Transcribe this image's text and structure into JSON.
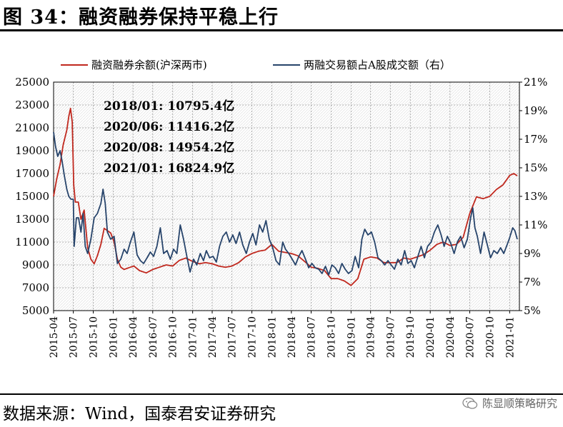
{
  "title": "图 34：融资融券保持平稳上行",
  "source": "数据来源：Wind，国泰君安证券研究",
  "watermark": "陈显顺策略研究",
  "chart_data": {
    "type": "line",
    "grid": true,
    "legend_position": "top",
    "series": [
      {
        "name": "融资融券余额(沪深两市)",
        "axis": "left",
        "color": "#c0281e",
        "points": [
          [
            "2015-04-01",
            15000
          ],
          [
            "2015-04-15",
            16500
          ],
          [
            "2015-05-01",
            17800
          ],
          [
            "2015-05-15",
            19500
          ],
          [
            "2015-06-01",
            20800
          ],
          [
            "2015-06-10",
            22000
          ],
          [
            "2015-06-18",
            22700
          ],
          [
            "2015-06-26",
            21500
          ],
          [
            "2015-07-03",
            16000
          ],
          [
            "2015-07-10",
            14500
          ],
          [
            "2015-07-24",
            14500
          ],
          [
            "2015-08-05",
            13000
          ],
          [
            "2015-08-20",
            13800
          ],
          [
            "2015-09-05",
            10500
          ],
          [
            "2015-09-20",
            9500
          ],
          [
            "2015-10-05",
            9100
          ],
          [
            "2015-10-20",
            9800
          ],
          [
            "2015-11-05",
            10800
          ],
          [
            "2015-11-20",
            12200
          ],
          [
            "2015-12-05",
            12000
          ],
          [
            "2015-12-20",
            11800
          ],
          [
            "2016-01-05",
            11000
          ],
          [
            "2016-01-20",
            9500
          ],
          [
            "2016-02-05",
            8800
          ],
          [
            "2016-02-20",
            8600
          ],
          [
            "2016-03-05",
            8700
          ],
          [
            "2016-03-20",
            8800
          ],
          [
            "2016-04-05",
            8900
          ],
          [
            "2016-05-01",
            8500
          ],
          [
            "2016-06-01",
            8300
          ],
          [
            "2016-07-01",
            8600
          ],
          [
            "2016-08-01",
            8800
          ],
          [
            "2016-09-01",
            9000
          ],
          [
            "2016-10-01",
            8900
          ],
          [
            "2016-11-01",
            9400
          ],
          [
            "2016-12-01",
            9600
          ],
          [
            "2017-01-01",
            9300
          ],
          [
            "2017-02-01",
            9100
          ],
          [
            "2017-03-01",
            9200
          ],
          [
            "2017-04-01",
            9100
          ],
          [
            "2017-05-01",
            8900
          ],
          [
            "2017-06-01",
            8800
          ],
          [
            "2017-07-01",
            8900
          ],
          [
            "2017-08-01",
            9200
          ],
          [
            "2017-09-01",
            9700
          ],
          [
            "2017-10-01",
            10000
          ],
          [
            "2017-11-01",
            10200
          ],
          [
            "2017-12-01",
            10300
          ],
          [
            "2018-01-01",
            10795.4
          ],
          [
            "2018-02-01",
            10200
          ],
          [
            "2018-03-01",
            10100
          ],
          [
            "2018-04-01",
            10000
          ],
          [
            "2018-05-01",
            9800
          ],
          [
            "2018-06-01",
            9300
          ],
          [
            "2018-07-01",
            8800
          ],
          [
            "2018-08-01",
            8700
          ],
          [
            "2018-09-01",
            8500
          ],
          [
            "2018-10-01",
            7800
          ],
          [
            "2018-11-01",
            7800
          ],
          [
            "2018-12-01",
            7600
          ],
          [
            "2019-01-01",
            7200
          ],
          [
            "2019-02-01",
            7800
          ],
          [
            "2019-03-01",
            9500
          ],
          [
            "2019-04-01",
            9700
          ],
          [
            "2019-05-01",
            9600
          ],
          [
            "2019-06-01",
            9200
          ],
          [
            "2019-07-01",
            9200
          ],
          [
            "2019-08-01",
            9200
          ],
          [
            "2019-09-01",
            9600
          ],
          [
            "2019-10-01",
            9500
          ],
          [
            "2019-11-01",
            9700
          ],
          [
            "2019-12-01",
            9900
          ],
          [
            "2020-01-01",
            10300
          ],
          [
            "2020-02-01",
            10800
          ],
          [
            "2020-03-01",
            11000
          ],
          [
            "2020-04-01",
            10700
          ],
          [
            "2020-05-01",
            10800
          ],
          [
            "2020-06-01",
            11416.2
          ],
          [
            "2020-07-01",
            13500
          ],
          [
            "2020-08-01",
            14954.2
          ],
          [
            "2020-09-01",
            14800
          ],
          [
            "2020-10-01",
            15000
          ],
          [
            "2020-11-01",
            15600
          ],
          [
            "2020-12-01",
            16000
          ],
          [
            "2021-01-01",
            16824.9
          ],
          [
            "2021-01-20",
            17000
          ],
          [
            "2021-02-05",
            16800
          ]
        ]
      },
      {
        "name": "两融交易额占A股成交额（右）",
        "axis": "right",
        "color": "#27446b",
        "points": [
          [
            "2015-04-01",
            17.5
          ],
          [
            "2015-04-10",
            16.5
          ],
          [
            "2015-04-20",
            15.8
          ],
          [
            "2015-05-01",
            16.2
          ],
          [
            "2015-05-10",
            15.5
          ],
          [
            "2015-05-20",
            14.5
          ],
          [
            "2015-06-01",
            13.5
          ],
          [
            "2015-06-10",
            13.0
          ],
          [
            "2015-06-20",
            12.8
          ],
          [
            "2015-07-01",
            12.8
          ],
          [
            "2015-07-05",
            9.5
          ],
          [
            "2015-07-15",
            11.5
          ],
          [
            "2015-07-25",
            11.5
          ],
          [
            "2015-08-05",
            10.5
          ],
          [
            "2015-08-15",
            11.8
          ],
          [
            "2015-08-25",
            9.5
          ],
          [
            "2015-09-05",
            9.0
          ],
          [
            "2015-09-20",
            10.0
          ],
          [
            "2015-10-05",
            11.5
          ],
          [
            "2015-10-20",
            11.8
          ],
          [
            "2015-11-05",
            12.5
          ],
          [
            "2015-11-15",
            13.5
          ],
          [
            "2015-11-25",
            12.5
          ],
          [
            "2015-12-05",
            10.5
          ],
          [
            "2015-12-20",
            10.0
          ],
          [
            "2016-01-05",
            10.2
          ],
          [
            "2016-01-20",
            8.3
          ],
          [
            "2016-02-05",
            8.6
          ],
          [
            "2016-02-20",
            9.3
          ],
          [
            "2016-03-05",
            9.0
          ],
          [
            "2016-03-20",
            9.8
          ],
          [
            "2016-04-05",
            10.5
          ],
          [
            "2016-04-20",
            8.9
          ],
          [
            "2016-05-05",
            8.5
          ],
          [
            "2016-05-20",
            8.3
          ],
          [
            "2016-06-05",
            8.7
          ],
          [
            "2016-06-20",
            9.1
          ],
          [
            "2016-07-05",
            8.8
          ],
          [
            "2016-07-20",
            9.5
          ],
          [
            "2016-08-05",
            10.8
          ],
          [
            "2016-08-20",
            9.0
          ],
          [
            "2016-09-05",
            9.2
          ],
          [
            "2016-09-20",
            8.6
          ],
          [
            "2016-10-05",
            9.3
          ],
          [
            "2016-10-20",
            9.0
          ],
          [
            "2016-11-05",
            11.0
          ],
          [
            "2016-11-20",
            10.0
          ],
          [
            "2016-12-05",
            8.8
          ],
          [
            "2016-12-20",
            7.7
          ],
          [
            "2017-01-05",
            8.6
          ],
          [
            "2017-01-20",
            8.2
          ],
          [
            "2017-02-05",
            9.0
          ],
          [
            "2017-02-20",
            8.5
          ],
          [
            "2017-03-05",
            9.2
          ],
          [
            "2017-03-20",
            8.7
          ],
          [
            "2017-04-05",
            8.8
          ],
          [
            "2017-04-20",
            8.4
          ],
          [
            "2017-05-05",
            9.5
          ],
          [
            "2017-05-20",
            10.2
          ],
          [
            "2017-06-05",
            10.5
          ],
          [
            "2017-06-20",
            9.8
          ],
          [
            "2017-07-05",
            10.3
          ],
          [
            "2017-07-20",
            9.7
          ],
          [
            "2017-08-05",
            10.5
          ],
          [
            "2017-08-20",
            9.6
          ],
          [
            "2017-09-05",
            9.0
          ],
          [
            "2017-09-20",
            9.8
          ],
          [
            "2017-10-05",
            10.4
          ],
          [
            "2017-10-20",
            9.6
          ],
          [
            "2017-11-05",
            11.0
          ],
          [
            "2017-11-20",
            10.5
          ],
          [
            "2017-12-05",
            11.3
          ],
          [
            "2017-12-20",
            10.0
          ],
          [
            "2018-01-05",
            9.4
          ],
          [
            "2018-01-20",
            8.5
          ],
          [
            "2018-02-05",
            8.2
          ],
          [
            "2018-02-20",
            9.8
          ],
          [
            "2018-03-05",
            9.3
          ],
          [
            "2018-03-20",
            9.0
          ],
          [
            "2018-04-05",
            8.6
          ],
          [
            "2018-04-20",
            8.2
          ],
          [
            "2018-05-05",
            8.8
          ],
          [
            "2018-05-20",
            9.2
          ],
          [
            "2018-06-05",
            8.6
          ],
          [
            "2018-06-20",
            8.0
          ],
          [
            "2018-07-05",
            8.3
          ],
          [
            "2018-07-20",
            8.0
          ],
          [
            "2018-08-05",
            7.9
          ],
          [
            "2018-08-20",
            7.6
          ],
          [
            "2018-09-05",
            8.1
          ],
          [
            "2018-09-20",
            7.5
          ],
          [
            "2018-10-05",
            8.2
          ],
          [
            "2018-10-20",
            8.0
          ],
          [
            "2018-11-05",
            7.6
          ],
          [
            "2018-11-20",
            8.3
          ],
          [
            "2018-12-05",
            7.9
          ],
          [
            "2018-12-20",
            7.6
          ],
          [
            "2019-01-05",
            7.8
          ],
          [
            "2019-01-20",
            8.8
          ],
          [
            "2019-02-05",
            8.0
          ],
          [
            "2019-02-20",
            10.0
          ],
          [
            "2019-03-05",
            10.7
          ],
          [
            "2019-03-20",
            10.3
          ],
          [
            "2019-04-05",
            10.5
          ],
          [
            "2019-04-20",
            9.8
          ],
          [
            "2019-05-05",
            8.7
          ],
          [
            "2019-05-20",
            8.5
          ],
          [
            "2019-06-05",
            8.2
          ],
          [
            "2019-06-20",
            8.5
          ],
          [
            "2019-07-05",
            8.2
          ],
          [
            "2019-07-20",
            7.9
          ],
          [
            "2019-08-05",
            8.6
          ],
          [
            "2019-08-20",
            8.2
          ],
          [
            "2019-09-05",
            9.2
          ],
          [
            "2019-09-20",
            8.3
          ],
          [
            "2019-10-05",
            8.5
          ],
          [
            "2019-10-20",
            8.0
          ],
          [
            "2019-11-05",
            8.8
          ],
          [
            "2019-11-20",
            9.5
          ],
          [
            "2019-12-05",
            8.7
          ],
          [
            "2019-12-20",
            9.5
          ],
          [
            "2020-01-05",
            9.8
          ],
          [
            "2020-01-20",
            10.5
          ],
          [
            "2020-02-05",
            11.0
          ],
          [
            "2020-02-20",
            10.3
          ],
          [
            "2020-03-05",
            9.5
          ],
          [
            "2020-03-20",
            10.2
          ],
          [
            "2020-04-05",
            9.7
          ],
          [
            "2020-04-20",
            9.0
          ],
          [
            "2020-05-05",
            9.8
          ],
          [
            "2020-05-20",
            10.2
          ],
          [
            "2020-06-05",
            9.4
          ],
          [
            "2020-06-20",
            10.0
          ],
          [
            "2020-07-05",
            11.5
          ],
          [
            "2020-07-15",
            12.2
          ],
          [
            "2020-07-25",
            10.8
          ],
          [
            "2020-08-05",
            10.2
          ],
          [
            "2020-08-20",
            9.0
          ],
          [
            "2020-09-05",
            10.5
          ],
          [
            "2020-09-20",
            9.6
          ],
          [
            "2020-10-05",
            8.7
          ],
          [
            "2020-10-20",
            9.2
          ],
          [
            "2020-11-05",
            9.0
          ],
          [
            "2020-11-20",
            9.4
          ],
          [
            "2020-12-05",
            9.0
          ],
          [
            "2020-12-20",
            9.6
          ],
          [
            "2021-01-01",
            10.1
          ],
          [
            "2021-01-15",
            10.8
          ],
          [
            "2021-01-25",
            10.6
          ],
          [
            "2021-02-05",
            10.0
          ]
        ]
      }
    ],
    "left_axis": {
      "min": 5000,
      "max": 25000,
      "ticks": [
        "25000",
        "23000",
        "21000",
        "19000",
        "17000",
        "15000",
        "13000",
        "11000",
        "9000",
        "7000",
        "5000"
      ]
    },
    "right_axis": {
      "min": 5,
      "max": 21,
      "ticks": [
        "21%",
        "19%",
        "17%",
        "15%",
        "13%",
        "11%",
        "9%",
        "7%",
        "5%"
      ]
    },
    "x_axis": {
      "start": "2015-04-01",
      "end": "2021-02-15",
      "ticks": [
        [
          "2015-04-01",
          "2015-04"
        ],
        [
          "2015-07-01",
          "2015-07"
        ],
        [
          "2015-10-01",
          "2015-10"
        ],
        [
          "2016-01-01",
          "2016-01"
        ],
        [
          "2016-04-01",
          "2016-04"
        ],
        [
          "2016-07-01",
          "2016-07"
        ],
        [
          "2016-10-01",
          "2016-10"
        ],
        [
          "2017-01-01",
          "2017-01"
        ],
        [
          "2017-04-01",
          "2017-04"
        ],
        [
          "2017-07-01",
          "2017-07"
        ],
        [
          "2017-10-01",
          "2017-10"
        ],
        [
          "2018-01-01",
          "2018-01"
        ],
        [
          "2018-04-01",
          "2018-04"
        ],
        [
          "2018-07-01",
          "2018-07"
        ],
        [
          "2018-10-01",
          "2018-10"
        ],
        [
          "2019-01-01",
          "2019-01"
        ],
        [
          "2019-04-01",
          "2019-04"
        ],
        [
          "2019-07-01",
          "2019-07"
        ],
        [
          "2019-10-01",
          "2019-10"
        ],
        [
          "2020-01-01",
          "2020-01"
        ],
        [
          "2020-04-01",
          "2020-04"
        ],
        [
          "2020-07-01",
          "2020-07"
        ],
        [
          "2020-10-01",
          "2020-10"
        ],
        [
          "2021-01-01",
          "2021-01"
        ]
      ]
    },
    "annotations": [
      "2018/01:   10795.4亿",
      "2020/06:   11416.2亿",
      "2020/08:   14954.2亿",
      "2021/01:   16824.9亿"
    ]
  }
}
